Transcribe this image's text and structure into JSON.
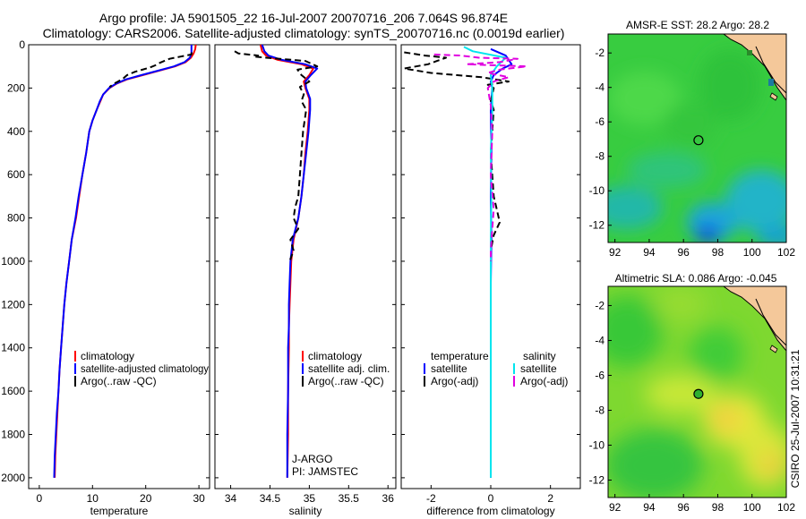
{
  "title_line1": "Argo profile: JA 5901505_22 16-Jul-2007 20070716_206 7.064S 96.874E",
  "title_line2": "Climatology: CARS2006. Satellite-adjusted climatology: synTS_20070716.nc (0.0019d earlier)",
  "side_stamp": "CSIRO 25-Jul-2007 10:31:21",
  "colors": {
    "climatology": "#ff0000",
    "satellite": "#0000ff",
    "argo": "#000000",
    "sat_diff_salinity": "#00e5ee",
    "argo_diff_salinity": "#e000e0"
  },
  "chart_data": [
    {
      "type": "line",
      "id": "temperature",
      "xlabel": "temperature",
      "ylabel": "",
      "xlim": [
        -2,
        32
      ],
      "ylim": [
        2050,
        0
      ],
      "xticks": [
        0,
        10,
        20,
        30
      ],
      "yticks": [
        0,
        200,
        400,
        600,
        800,
        1000,
        1200,
        1400,
        1600,
        1800,
        2000
      ],
      "legend": [
        "climatology",
        "satellite-adjusted climatology",
        "Argo(..raw -QC)"
      ],
      "series": [
        {
          "name": "climatology",
          "style": "solid",
          "points": [
            [
              29.4,
              0
            ],
            [
              29.3,
              20
            ],
            [
              29.0,
              40
            ],
            [
              28.5,
              60
            ],
            [
              27.5,
              80
            ],
            [
              25.5,
              100
            ],
            [
              22.5,
              120
            ],
            [
              19.5,
              140
            ],
            [
              16.5,
              160
            ],
            [
              14.5,
              180
            ],
            [
              13.2,
              200
            ],
            [
              12.0,
              230
            ],
            [
              11.5,
              260
            ],
            [
              10.8,
              300
            ],
            [
              10.0,
              350
            ],
            [
              9.4,
              400
            ],
            [
              8.8,
              500
            ],
            [
              8.1,
              600
            ],
            [
              7.5,
              700
            ],
            [
              6.9,
              800
            ],
            [
              6.1,
              900
            ],
            [
              5.6,
              1000
            ],
            [
              5.1,
              1100
            ],
            [
              4.7,
              1200
            ],
            [
              4.4,
              1300
            ],
            [
              4.1,
              1400
            ],
            [
              3.8,
              1500
            ],
            [
              3.6,
              1600
            ],
            [
              3.4,
              1700
            ],
            [
              3.2,
              1800
            ],
            [
              3.0,
              1900
            ],
            [
              2.9,
              2000
            ]
          ]
        },
        {
          "name": "satellite-adjusted climatology",
          "style": "solid",
          "points": [
            [
              28.6,
              0
            ],
            [
              28.6,
              20
            ],
            [
              28.6,
              40
            ],
            [
              28.3,
              60
            ],
            [
              27.3,
              80
            ],
            [
              25.3,
              100
            ],
            [
              22.3,
              120
            ],
            [
              19.2,
              140
            ],
            [
              16.3,
              160
            ],
            [
              14.4,
              180
            ],
            [
              13.1,
              200
            ],
            [
              12.0,
              230
            ],
            [
              11.4,
              260
            ],
            [
              10.8,
              300
            ],
            [
              10.0,
              350
            ],
            [
              9.4,
              400
            ],
            [
              8.8,
              500
            ],
            [
              8.1,
              600
            ],
            [
              7.4,
              700
            ],
            [
              6.8,
              800
            ],
            [
              6.1,
              900
            ],
            [
              5.6,
              1000
            ],
            [
              5.1,
              1100
            ],
            [
              4.7,
              1200
            ],
            [
              4.4,
              1300
            ],
            [
              4.1,
              1400
            ],
            [
              3.8,
              1500
            ],
            [
              3.6,
              1600
            ],
            [
              3.3,
              1700
            ],
            [
              3.1,
              1800
            ],
            [
              2.9,
              1900
            ],
            [
              2.8,
              2000
            ]
          ]
        },
        {
          "name": "Argo(..raw -QC)",
          "style": "dashed",
          "points": [
            [
              28.6,
              35
            ],
            [
              28.6,
              45
            ],
            [
              26.5,
              55
            ],
            [
              24.5,
              65
            ],
            [
              23.5,
              75
            ],
            [
              22.5,
              85
            ],
            [
              21.8,
              95
            ],
            [
              20.8,
              105
            ],
            [
              18.0,
              125
            ],
            [
              16.5,
              140
            ],
            [
              15.8,
              155
            ],
            [
              14.8,
              170
            ],
            [
              14.0,
              180
            ],
            [
              13.2,
              195
            ]
          ]
        }
      ]
    },
    {
      "type": "line",
      "id": "salinity",
      "xlabel": "salinity",
      "xlim": [
        33.8,
        36.1
      ],
      "ylim": [
        2050,
        0
      ],
      "xticks": [
        34,
        34.5,
        35,
        35.5,
        36
      ],
      "xticklabels": [
        "34",
        "34.5",
        "35",
        "35.5",
        "36"
      ],
      "legend": [
        "climatology",
        "satellite adj. clim.",
        "Argo(..raw -QC)"
      ],
      "annotation_lines": [
        "J-ARGO",
        "PI: JAMSTEC"
      ],
      "series": [
        {
          "name": "climatology",
          "style": "solid",
          "points": [
            [
              34.38,
              0
            ],
            [
              34.4,
              30
            ],
            [
              34.45,
              50
            ],
            [
              34.6,
              70
            ],
            [
              34.9,
              90
            ],
            [
              35.05,
              110
            ],
            [
              35.0,
              140
            ],
            [
              34.93,
              170
            ],
            [
              34.95,
              200
            ],
            [
              35.0,
              250
            ],
            [
              35.0,
              300
            ],
            [
              34.98,
              400
            ],
            [
              34.95,
              500
            ],
            [
              34.93,
              600
            ],
            [
              34.9,
              700
            ],
            [
              34.86,
              800
            ],
            [
              34.8,
              900
            ],
            [
              34.77,
              1000
            ],
            [
              34.76,
              1100
            ],
            [
              34.75,
              1200
            ],
            [
              34.74,
              1300
            ],
            [
              34.74,
              1400
            ],
            [
              34.73,
              1600
            ],
            [
              34.73,
              1800
            ],
            [
              34.72,
              2000
            ]
          ]
        },
        {
          "name": "satellite adj. clim.",
          "style": "solid",
          "points": [
            [
              34.4,
              0
            ],
            [
              34.43,
              30
            ],
            [
              34.48,
              50
            ],
            [
              34.65,
              70
            ],
            [
              34.95,
              90
            ],
            [
              35.1,
              110
            ],
            [
              35.02,
              140
            ],
            [
              34.95,
              170
            ],
            [
              34.96,
              200
            ],
            [
              35.01,
              250
            ],
            [
              35.01,
              300
            ],
            [
              34.99,
              400
            ],
            [
              34.96,
              500
            ],
            [
              34.93,
              600
            ],
            [
              34.9,
              700
            ],
            [
              34.86,
              800
            ],
            [
              34.79,
              900
            ],
            [
              34.76,
              1000
            ],
            [
              34.75,
              1100
            ],
            [
              34.74,
              1200
            ],
            [
              34.74,
              1300
            ],
            [
              34.73,
              1400
            ],
            [
              34.73,
              1600
            ],
            [
              34.72,
              1800
            ],
            [
              34.72,
              2000
            ]
          ]
        },
        {
          "name": "Argo(..raw -QC)",
          "style": "dashed",
          "points": [
            [
              34.05,
              30
            ],
            [
              34.1,
              40
            ],
            [
              34.35,
              50
            ],
            [
              34.3,
              55
            ],
            [
              34.45,
              60
            ],
            [
              34.95,
              75
            ],
            [
              35.1,
              100
            ],
            [
              34.85,
              115
            ],
            [
              34.9,
              140
            ],
            [
              35.0,
              170
            ],
            [
              34.88,
              195
            ],
            [
              34.93,
              230
            ],
            [
              34.9,
              260
            ],
            [
              34.96,
              300
            ],
            [
              34.92,
              400
            ],
            [
              34.9,
              500
            ],
            [
              34.88,
              600
            ],
            [
              34.86,
              700
            ],
            [
              34.82,
              750
            ],
            [
              34.8,
              800
            ],
            [
              34.86,
              850
            ],
            [
              34.76,
              900
            ],
            [
              34.8,
              950
            ],
            [
              34.75,
              1000
            ]
          ]
        }
      ]
    },
    {
      "type": "line",
      "id": "difference",
      "xlabel": "difference from climatology",
      "xlim": [
        -3,
        3
      ],
      "ylim": [
        2050,
        0
      ],
      "xticks": [
        -2,
        0,
        2
      ],
      "legend_groups": [
        {
          "title": "temperature",
          "items": [
            "satellite",
            "Argo(-adj)"
          ]
        },
        {
          "title": "salinity",
          "items": [
            "satellite",
            "Argo(-adj)"
          ]
        }
      ],
      "series": [
        {
          "name": "temperature satellite",
          "style": "solid",
          "points": [
            [
              0.0,
              20
            ],
            [
              0.5,
              50
            ],
            [
              0.7,
              90
            ],
            [
              0.4,
              110
            ],
            [
              0.1,
              140
            ],
            [
              0.0,
              170
            ],
            [
              0.05,
              200
            ],
            [
              0.0,
              300
            ],
            [
              0.02,
              500
            ],
            [
              0.0,
              700
            ],
            [
              0.02,
              900
            ],
            [
              0.0,
              1100
            ],
            [
              0.0,
              1300
            ],
            [
              0.0,
              1500
            ],
            [
              0.0,
              1700
            ],
            [
              0.0,
              2000
            ]
          ]
        },
        {
          "name": "temperature Argo(-adj)",
          "style": "dashed",
          "points": [
            [
              -2.9,
              35
            ],
            [
              -2.2,
              50
            ],
            [
              -1.5,
              60
            ],
            [
              -1.8,
              75
            ],
            [
              -2.1,
              90
            ],
            [
              -2.9,
              110
            ],
            [
              -2.0,
              130
            ],
            [
              -0.3,
              150
            ],
            [
              0.6,
              170
            ],
            [
              -0.1,
              185
            ],
            [
              0.1,
              200
            ],
            [
              0.0,
              260
            ],
            [
              0.1,
              300
            ],
            [
              0.0,
              500
            ],
            [
              0.1,
              700
            ],
            [
              0.2,
              760
            ],
            [
              0.3,
              820
            ],
            [
              0.1,
              880
            ],
            [
              0.0,
              950
            ],
            [
              0.0,
              1000
            ]
          ]
        },
        {
          "name": "salinity satellite",
          "style": "solid",
          "points": [
            [
              -0.9,
              10
            ],
            [
              -0.6,
              30
            ],
            [
              0.5,
              60
            ],
            [
              0.2,
              100
            ],
            [
              0.0,
              140
            ],
            [
              0.05,
              200
            ],
            [
              0.05,
              300
            ],
            [
              0.0,
              500
            ],
            [
              0.02,
              700
            ],
            [
              0.0,
              900
            ],
            [
              0.0,
              1100
            ],
            [
              0.0,
              1300
            ],
            [
              0.0,
              1500
            ],
            [
              0.0,
              1700
            ],
            [
              0.0,
              2000
            ]
          ]
        },
        {
          "name": "salinity Argo(-adj)",
          "style": "dashed",
          "points": [
            [
              -1.9,
              45
            ],
            [
              -1.0,
              50
            ],
            [
              -0.4,
              60
            ],
            [
              0.9,
              65
            ],
            [
              0.3,
              80
            ],
            [
              -0.8,
              90
            ],
            [
              1.2,
              100
            ],
            [
              0.3,
              115
            ],
            [
              -0.1,
              130
            ],
            [
              0.6,
              150
            ],
            [
              0.1,
              170
            ],
            [
              -0.1,
              200
            ],
            [
              0.0,
              280
            ],
            [
              0.05,
              400
            ],
            [
              0.0,
              600
            ],
            [
              0.1,
              760
            ],
            [
              0.05,
              850
            ],
            [
              0.0,
              950
            ],
            [
              0.0,
              1000
            ]
          ]
        }
      ]
    },
    {
      "type": "heatmap",
      "id": "sst_map",
      "title": "AMSR-E SST: 28.2 Argo: 28.2",
      "xlim": [
        91.6,
        102.0
      ],
      "ylim": [
        -13.0,
        -0.9
      ],
      "xticks": [
        92,
        94,
        96,
        98,
        100,
        102
      ],
      "yticks": [
        -2,
        -4,
        -6,
        -8,
        -10,
        -12
      ],
      "marker": {
        "lon": 96.874,
        "lat": -7.064
      }
    },
    {
      "type": "heatmap",
      "id": "sla_map",
      "title": "Altimetric SLA: 0.086 Argo: -0.045",
      "xlim": [
        91.6,
        102.0
      ],
      "ylim": [
        -13.0,
        -0.9
      ],
      "xticks": [
        92,
        94,
        96,
        98,
        100,
        102
      ],
      "yticks": [
        -2,
        -4,
        -6,
        -8,
        -10,
        -12
      ],
      "marker": {
        "lon": 96.874,
        "lat": -7.064
      }
    }
  ]
}
